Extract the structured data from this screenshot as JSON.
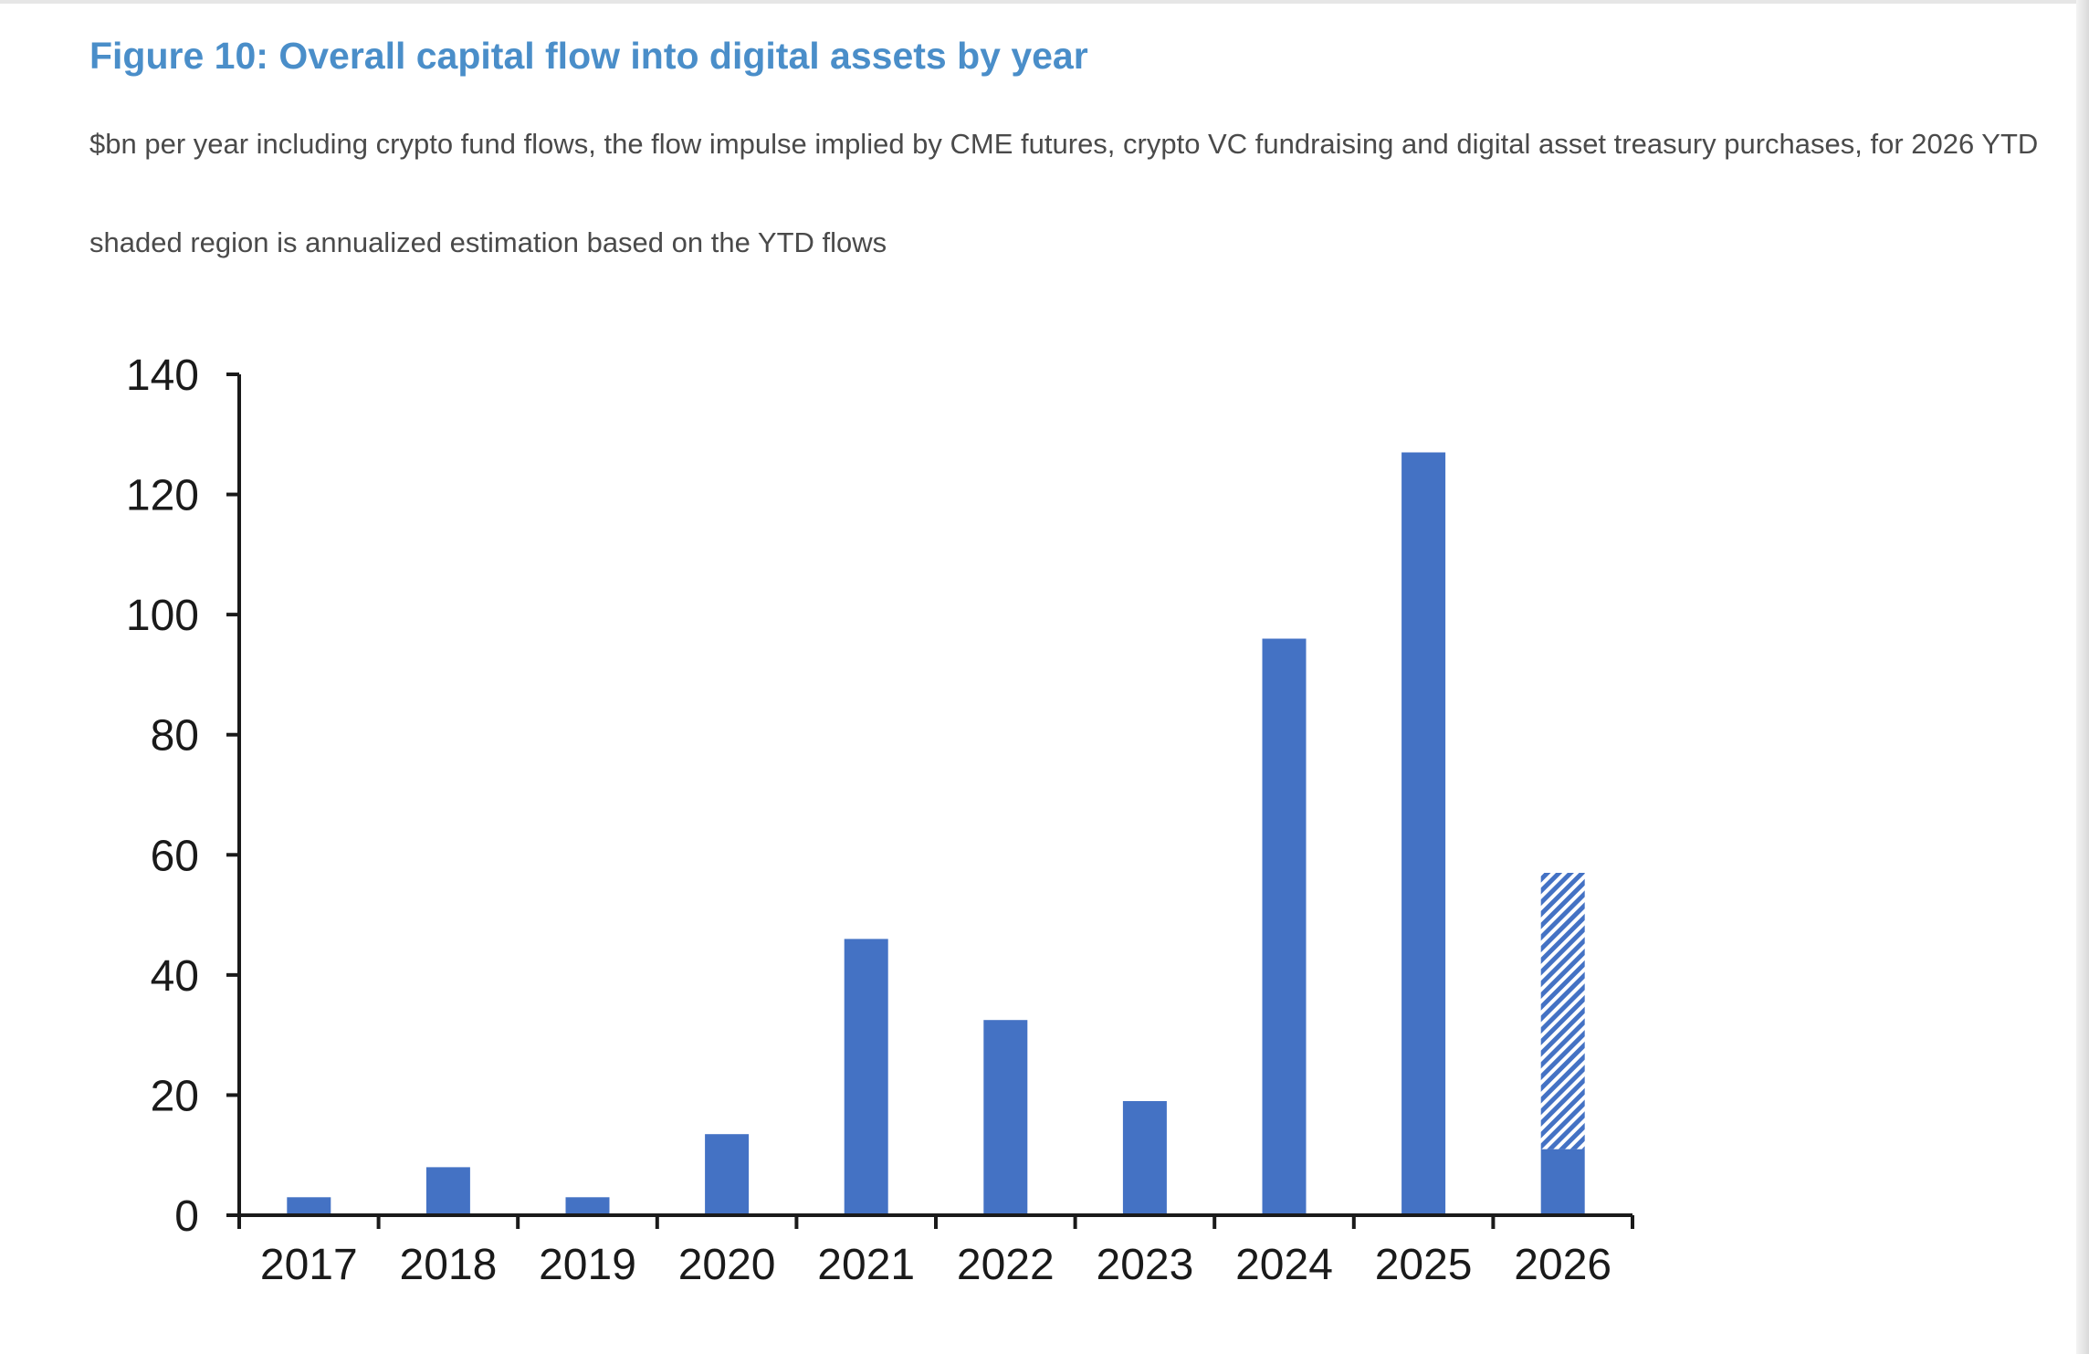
{
  "header": {
    "title": "Figure 10: Overall capital flow into digital assets by year",
    "subtitle": "$bn per year including crypto fund flows, the flow impulse implied by CME futures, crypto VC fundraising and digital asset treasury purchases, for 2026 YTD",
    "note": "shaded region is annualized estimation based on the YTD flows"
  },
  "colors": {
    "bar": "#4472c4",
    "title": "#4a8ec9",
    "axis": "#1a1a1a"
  },
  "chart_data": {
    "type": "bar",
    "title": "Figure 10: Overall capital flow into digital assets by year",
    "xlabel": "",
    "ylabel": "",
    "ylim": [
      0,
      140
    ],
    "yticks": [
      0,
      20,
      40,
      60,
      80,
      100,
      120,
      140
    ],
    "grid": false,
    "categories": [
      "2017",
      "2018",
      "2019",
      "2020",
      "2021",
      "2022",
      "2023",
      "2024",
      "2025",
      "2026"
    ],
    "series": [
      {
        "name": "Capital flow ($bn)",
        "style": "solid",
        "values": [
          3,
          8,
          3,
          13.5,
          46,
          32.5,
          19,
          96,
          127,
          11
        ]
      },
      {
        "name": "Annualized estimation (shaded)",
        "style": "hatched",
        "stacked_on": "Capital flow ($bn)",
        "values": [
          0,
          0,
          0,
          0,
          0,
          0,
          0,
          0,
          0,
          46
        ]
      }
    ]
  }
}
